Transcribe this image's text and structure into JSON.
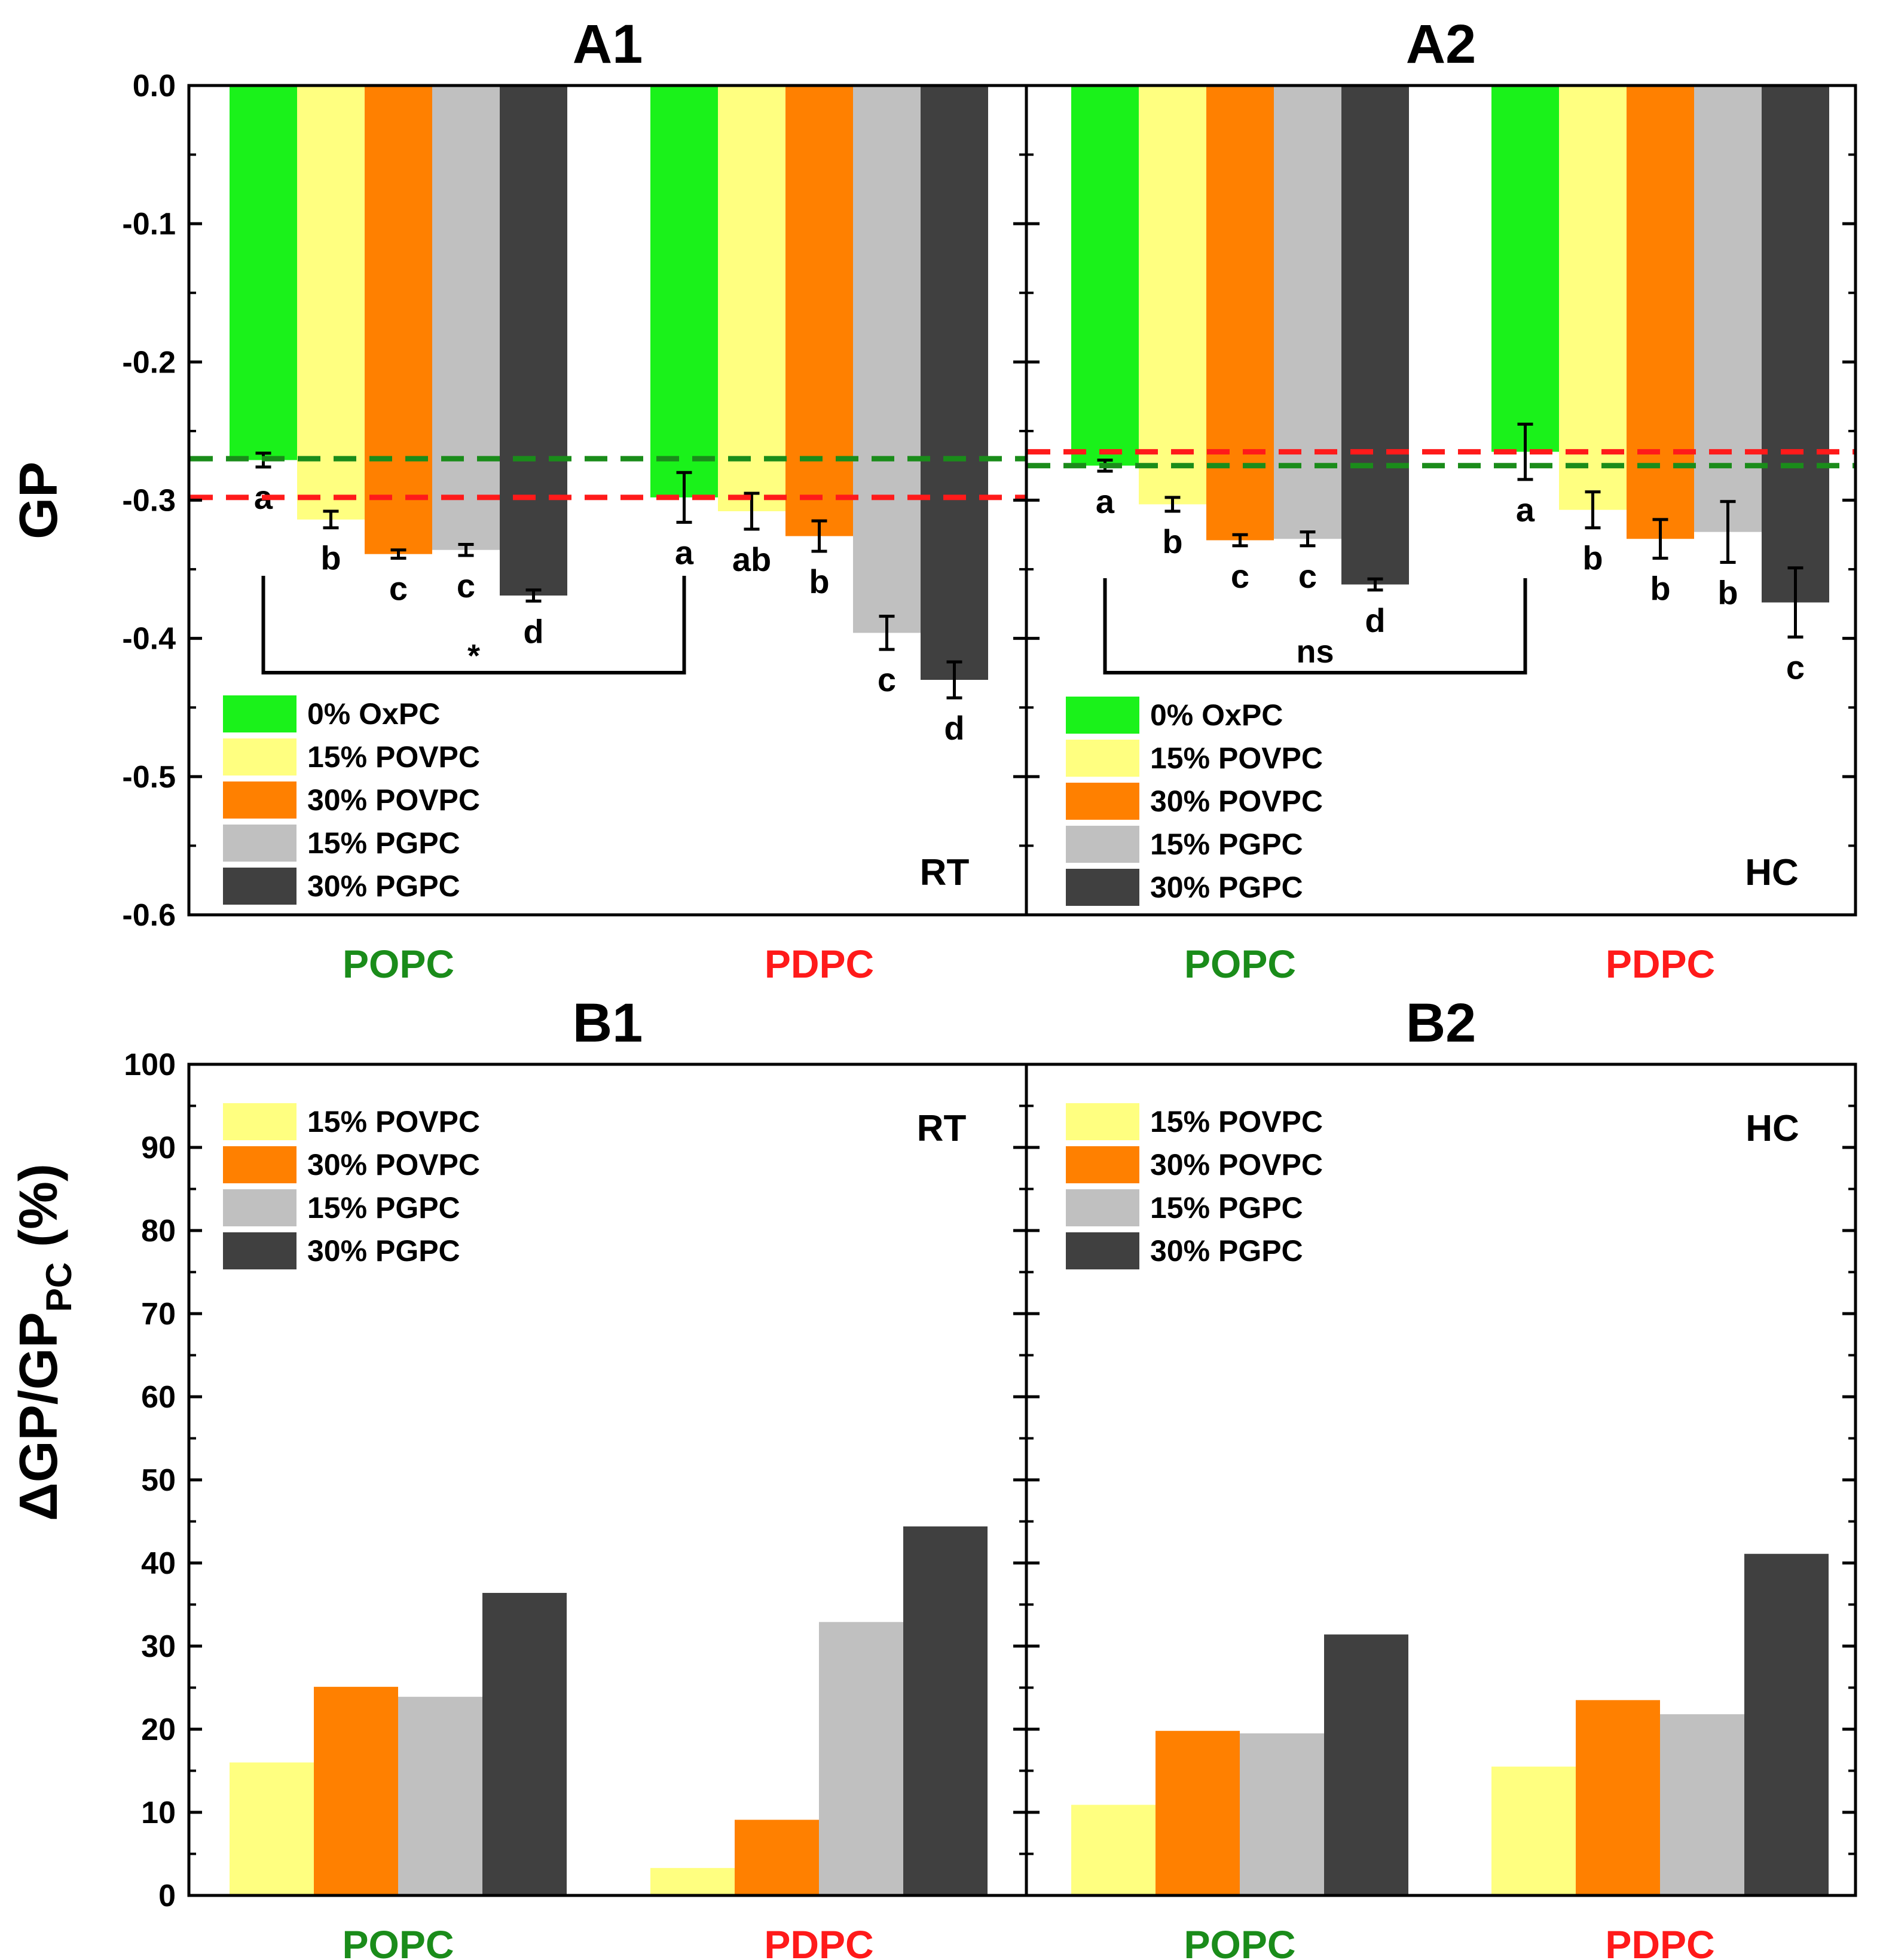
{
  "colors": {
    "green": "#1af21a",
    "yellow": "#ffff80",
    "orange": "#ff8000",
    "lightgray": "#c0c0c0",
    "darkgray": "#404040",
    "popc_label": "#1a8c1a",
    "pdpc_label": "#ff1a1a",
    "dash_green": "#1a8c1a",
    "dash_red": "#ff1a1a"
  },
  "y_labels": {
    "top": "GP",
    "bottom_main": "ΔGP/GP",
    "bottom_sub": "PC",
    "bottom_tail": " (%)"
  },
  "chart_data": [
    {
      "id": "A1",
      "type": "bar",
      "title": "A1",
      "condition": "RT",
      "ylim": [
        -0.6,
        0.0
      ],
      "yticks": [
        "0.0",
        "-0.1",
        "-0.2",
        "-0.3",
        "-0.4",
        "-0.5",
        "-0.6"
      ],
      "categories": [
        "POPC",
        "PDPC"
      ],
      "series": [
        {
          "name": "0% OxPC",
          "color_key": "green",
          "values": [
            -0.271,
            -0.298
          ],
          "errors": [
            0.005,
            0.018
          ]
        },
        {
          "name": "15% POVPC",
          "color_key": "yellow",
          "values": [
            -0.314,
            -0.308
          ],
          "errors": [
            0.006,
            0.013
          ]
        },
        {
          "name": "30% POVPC",
          "color_key": "orange",
          "values": [
            -0.339,
            -0.326
          ],
          "errors": [
            0.003,
            0.011
          ]
        },
        {
          "name": "15% PGPC",
          "color_key": "lightgray",
          "values": [
            -0.336,
            -0.396
          ],
          "errors": [
            0.004,
            0.012
          ]
        },
        {
          "name": "30% PGPC",
          "color_key": "darkgray",
          "values": [
            -0.369,
            -0.43
          ],
          "errors": [
            0.004,
            0.013
          ]
        }
      ],
      "letters": [
        [
          "a",
          "b",
          "c",
          "c",
          "d"
        ],
        [
          "a",
          "ab",
          "b",
          "c",
          "d"
        ]
      ],
      "significance": "*",
      "reference_lines": [
        {
          "value": -0.27,
          "color_key": "dash_green"
        },
        {
          "value": -0.298,
          "color_key": "dash_red"
        }
      ]
    },
    {
      "id": "A2",
      "type": "bar",
      "title": "A2",
      "condition": "HC",
      "ylim": [
        -0.6,
        0.0
      ],
      "yticks": [
        "0.0",
        "-0.1",
        "-0.2",
        "-0.3",
        "-0.4",
        "-0.5",
        "-0.6"
      ],
      "categories": [
        "POPC",
        "PDPC"
      ],
      "series": [
        {
          "name": "0% OxPC",
          "color_key": "green",
          "values": [
            -0.275,
            -0.265
          ],
          "errors": [
            0.004,
            0.02
          ]
        },
        {
          "name": "15% POVPC",
          "color_key": "yellow",
          "values": [
            -0.303,
            -0.307
          ],
          "errors": [
            0.005,
            0.013
          ]
        },
        {
          "name": "30% POVPC",
          "color_key": "orange",
          "values": [
            -0.329,
            -0.328
          ],
          "errors": [
            0.004,
            0.014
          ]
        },
        {
          "name": "15% PGPC",
          "color_key": "lightgray",
          "values": [
            -0.328,
            -0.323
          ],
          "errors": [
            0.005,
            0.022
          ]
        },
        {
          "name": "30% PGPC",
          "color_key": "darkgray",
          "values": [
            -0.361,
            -0.374
          ],
          "errors": [
            0.004,
            0.025
          ]
        }
      ],
      "letters": [
        [
          "a",
          "b",
          "c",
          "c",
          "d"
        ],
        [
          "a",
          "b",
          "b",
          "b",
          "c"
        ]
      ],
      "significance": "ns",
      "reference_lines": [
        {
          "value": -0.265,
          "color_key": "dash_red"
        },
        {
          "value": -0.275,
          "color_key": "dash_green"
        }
      ]
    },
    {
      "id": "B1",
      "type": "bar",
      "title": "B1",
      "condition": "RT",
      "ylim": [
        0,
        100
      ],
      "yticks": [
        "0",
        "10",
        "20",
        "30",
        "40",
        "50",
        "60",
        "70",
        "80",
        "90",
        "100"
      ],
      "categories": [
        "POPC",
        "PDPC"
      ],
      "series": [
        {
          "name": "15% POVPC",
          "color_key": "yellow",
          "values": [
            16.0,
            3.3
          ]
        },
        {
          "name": "30% POVPC",
          "color_key": "orange",
          "values": [
            25.1,
            9.1
          ]
        },
        {
          "name": "15% PGPC",
          "color_key": "lightgray",
          "values": [
            23.9,
            32.9
          ]
        },
        {
          "name": "30% PGPC",
          "color_key": "darkgray",
          "values": [
            36.4,
            44.4
          ]
        }
      ]
    },
    {
      "id": "B2",
      "type": "bar",
      "title": "B2",
      "condition": "HC",
      "ylim": [
        0,
        100
      ],
      "yticks": [
        "0",
        "10",
        "20",
        "30",
        "40",
        "50",
        "60",
        "70",
        "80",
        "90",
        "100"
      ],
      "categories": [
        "POPC",
        "PDPC"
      ],
      "series": [
        {
          "name": "15% POVPC",
          "color_key": "yellow",
          "values": [
            10.9,
            15.5
          ]
        },
        {
          "name": "30% POVPC",
          "color_key": "orange",
          "values": [
            19.8,
            23.5
          ]
        },
        {
          "name": "15% PGPC",
          "color_key": "lightgray",
          "values": [
            19.5,
            21.8
          ]
        },
        {
          "name": "30% PGPC",
          "color_key": "darkgray",
          "values": [
            31.4,
            41.1
          ]
        }
      ]
    }
  ]
}
